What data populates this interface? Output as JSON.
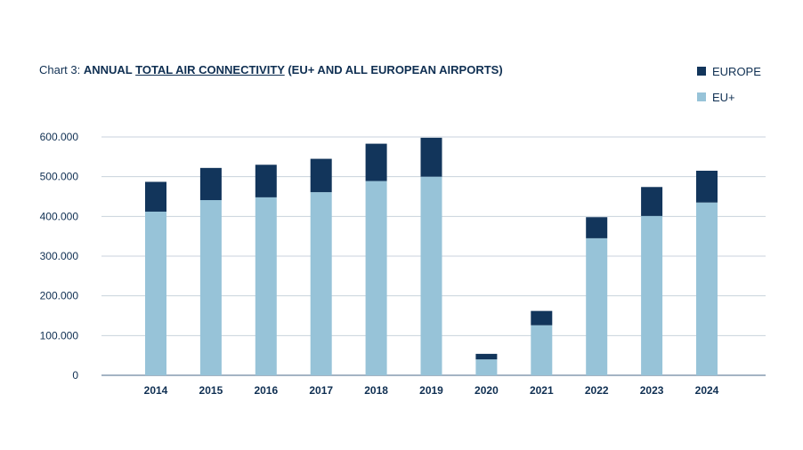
{
  "title": {
    "prefix": "Chart 3: ",
    "part1": "ANNUAL ",
    "underlined": "TOTAL AIR CONNECTIVITY",
    "part2": " (EU+ AND ALL EUROPEAN AIRPORTS)"
  },
  "legend": [
    {
      "label": "EUROPE",
      "color": "#12355b"
    },
    {
      "label": "EU+",
      "color": "#97c3d8"
    }
  ],
  "chart_data": {
    "type": "bar",
    "stacked": true,
    "categories": [
      "2014",
      "2015",
      "2016",
      "2017",
      "2018",
      "2019",
      "2020",
      "2021",
      "2022",
      "2023",
      "2024"
    ],
    "series": [
      {
        "name": "EU+",
        "color": "#97c3d8",
        "values": [
          412000,
          441000,
          448000,
          461000,
          489000,
          500000,
          40000,
          126000,
          345000,
          401000,
          435000
        ]
      },
      {
        "name": "EUROPE",
        "color": "#12355b",
        "values": [
          75000,
          81000,
          82000,
          84000,
          94000,
          98000,
          14000,
          36000,
          53000,
          73000,
          80000
        ]
      }
    ],
    "ylim": [
      0,
      600000
    ],
    "yticks": [
      0,
      100000,
      200000,
      300000,
      400000,
      500000,
      600000
    ],
    "ytick_labels": [
      "0",
      "100.000",
      "200.000",
      "300.000",
      "400.000",
      "500.000",
      "600.000"
    ],
    "grid": true,
    "legend_position": "top-right",
    "xlabel": "",
    "ylabel": ""
  }
}
